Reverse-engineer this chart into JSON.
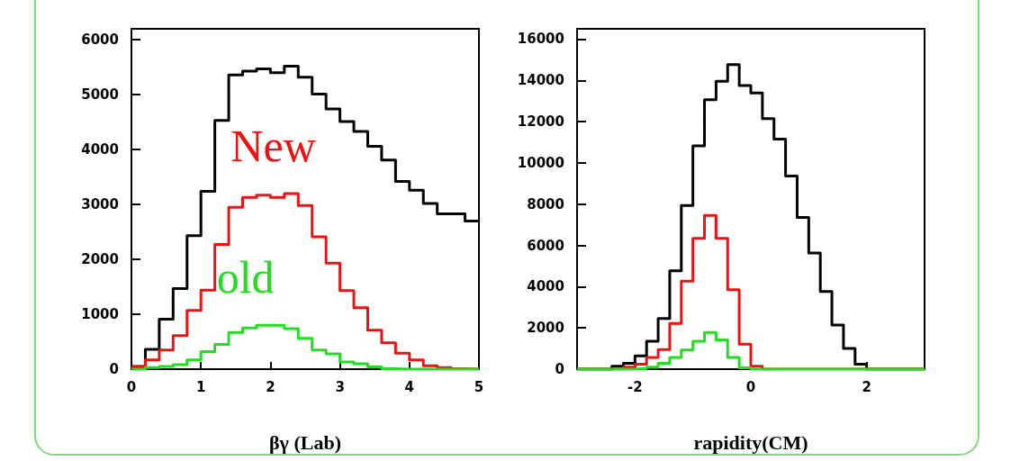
{
  "chart_data": [
    {
      "type": "histogram",
      "xlabel": "βγ (Lab)",
      "bins": [
        0,
        0.2,
        0.4,
        0.6,
        0.8,
        1.0,
        1.2,
        1.4,
        1.6,
        1.8,
        2.0,
        2.2,
        2.4,
        2.6,
        2.8,
        3.0,
        3.2,
        3.4,
        3.6,
        3.8,
        4.0,
        4.2,
        4.4,
        4.6,
        4.8,
        5.0
      ],
      "xlim": [
        0,
        5
      ],
      "xticks": [
        0,
        1,
        2,
        3,
        4,
        5
      ],
      "ylim": [
        0,
        6200
      ],
      "yticks": [
        0,
        1000,
        2000,
        3000,
        4000,
        5000,
        6000
      ],
      "grid": false,
      "legend": false,
      "series": [
        {
          "color": "#000000",
          "values": [
            50,
            360,
            910,
            1470,
            2430,
            3240,
            4530,
            5360,
            5430,
            5470,
            5400,
            5520,
            5320,
            5010,
            4740,
            4510,
            4330,
            4060,
            3810,
            3420,
            3260,
            3020,
            2830,
            2830,
            2700
          ]
        },
        {
          "name": "New",
          "color": "#ee1111",
          "values": [
            40,
            170,
            350,
            610,
            1070,
            1440,
            2270,
            2950,
            3130,
            3170,
            3130,
            3200,
            2980,
            2410,
            1930,
            1430,
            1120,
            710,
            480,
            290,
            170,
            60,
            30,
            10,
            0
          ]
        },
        {
          "name": "old",
          "color": "#22dd22",
          "values": [
            0,
            30,
            50,
            80,
            170,
            320,
            450,
            670,
            750,
            800,
            800,
            740,
            560,
            350,
            280,
            130,
            100,
            40,
            10,
            0,
            0,
            0,
            0,
            0,
            0
          ]
        }
      ]
    },
    {
      "type": "histogram",
      "xlabel": "rapidity(CM)",
      "bins": [
        -3.0,
        -2.8,
        -2.6,
        -2.4,
        -2.2,
        -2.0,
        -1.8,
        -1.6,
        -1.4,
        -1.2,
        -1.0,
        -0.8,
        -0.6,
        -0.4,
        -0.2,
        0,
        0.2,
        0.4,
        0.6,
        0.8,
        1.0,
        1.2,
        1.4,
        1.6,
        1.8,
        2.0,
        2.2,
        2.4,
        2.6,
        2.8,
        3.0
      ],
      "xlim": [
        -3,
        3
      ],
      "xticks": [
        -2,
        0,
        2
      ],
      "ylim": [
        0,
        16500
      ],
      "yticks": [
        0,
        2000,
        4000,
        6000,
        8000,
        10000,
        12000,
        14000,
        16000
      ],
      "grid": false,
      "legend": false,
      "series": [
        {
          "color": "#000000",
          "values": [
            0,
            0,
            0,
            140,
            280,
            640,
            1350,
            2460,
            4770,
            7930,
            10830,
            13060,
            13960,
            14770,
            13750,
            13390,
            12150,
            11150,
            9360,
            7360,
            5630,
            3770,
            2140,
            1000,
            240,
            0,
            0,
            0,
            0,
            0
          ]
        },
        {
          "color": "#ee1111",
          "values": [
            0,
            0,
            0,
            0,
            100,
            240,
            570,
            950,
            2210,
            4270,
            6340,
            7450,
            6340,
            3850,
            1210,
            140,
            0,
            0,
            0,
            0,
            0,
            0,
            0,
            0,
            0,
            0,
            0,
            0,
            0,
            0
          ]
        },
        {
          "color": "#22dd22",
          "values": [
            0,
            0,
            0,
            0,
            0,
            30,
            100,
            280,
            570,
            930,
            1350,
            1780,
            1420,
            570,
            70,
            0,
            0,
            0,
            0,
            0,
            0,
            0,
            0,
            0,
            0,
            0,
            0,
            0,
            0,
            0
          ]
        }
      ]
    }
  ]
}
